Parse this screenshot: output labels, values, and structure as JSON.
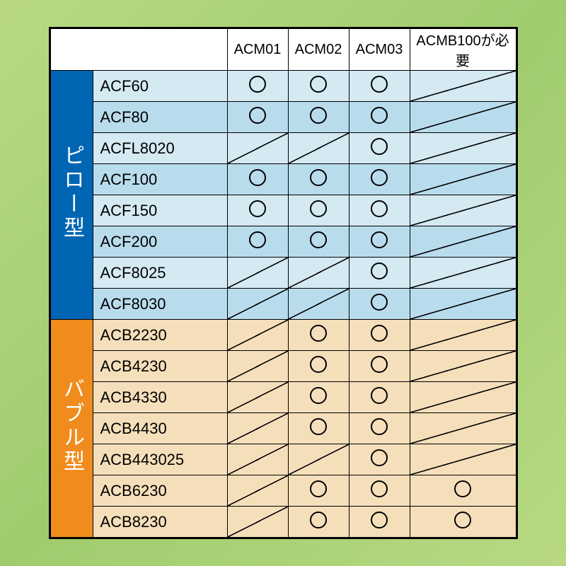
{
  "columns": [
    "ACM01",
    "ACM02",
    "ACM03",
    "ACMB100が必要"
  ],
  "groups": [
    {
      "label": "ピロー型",
      "class": "g-pillow",
      "rowClassA": "row-blue-a",
      "rowClassB": "row-blue-b",
      "rows": [
        {
          "name": "ACF60",
          "cells": [
            "circle",
            "circle",
            "circle",
            "slash"
          ]
        },
        {
          "name": "ACF80",
          "cells": [
            "circle",
            "circle",
            "circle",
            "slash"
          ]
        },
        {
          "name": "ACFL8020",
          "cells": [
            "slash",
            "slash",
            "circle",
            "slash"
          ]
        },
        {
          "name": "ACF100",
          "cells": [
            "circle",
            "circle",
            "circle",
            "slash"
          ]
        },
        {
          "name": "ACF150",
          "cells": [
            "circle",
            "circle",
            "circle",
            "slash"
          ]
        },
        {
          "name": "ACF200",
          "cells": [
            "circle",
            "circle",
            "circle",
            "slash"
          ]
        },
        {
          "name": "ACF8025",
          "cells": [
            "slash",
            "slash",
            "circle",
            "slash"
          ]
        },
        {
          "name": "ACF8030",
          "cells": [
            "slash",
            "slash",
            "circle",
            "slash"
          ]
        }
      ]
    },
    {
      "label": "バブル型",
      "class": "g-bubble",
      "rowClassA": "row-orange-a",
      "rowClassB": "row-orange-b",
      "rows": [
        {
          "name": "ACB2230",
          "cells": [
            "slash",
            "circle",
            "circle",
            "slash"
          ]
        },
        {
          "name": "ACB4230",
          "cells": [
            "slash",
            "circle",
            "circle",
            "slash"
          ]
        },
        {
          "name": "ACB4330",
          "cells": [
            "slash",
            "circle",
            "circle",
            "slash"
          ]
        },
        {
          "name": "ACB4430",
          "cells": [
            "slash",
            "circle",
            "circle",
            "slash"
          ]
        },
        {
          "name": "ACB443025",
          "cells": [
            "slash",
            "slash",
            "circle",
            "slash"
          ]
        },
        {
          "name": "ACB6230",
          "cells": [
            "slash",
            "circle",
            "circle",
            "circle"
          ]
        },
        {
          "name": "ACB8230",
          "cells": [
            "slash",
            "circle",
            "circle",
            "circle"
          ]
        }
      ]
    }
  ],
  "colors": {
    "page_bg_from": "#b8d982",
    "page_bg_to": "#a0cc6e",
    "pillow_header": "#0066b3",
    "bubble_header": "#f08c1e",
    "blue_row_a": "#d4e9f2",
    "blue_row_b": "#b9dced",
    "orange_row": "#f5dfba",
    "border": "#000000"
  }
}
